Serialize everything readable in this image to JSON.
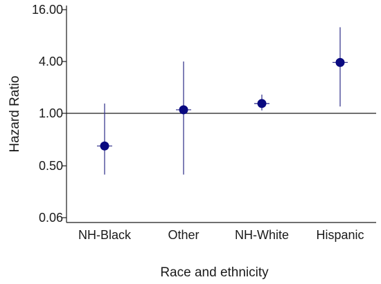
{
  "chart_data": {
    "type": "scatter",
    "subtype": "forest-plot",
    "title": "",
    "xlabel": "Race and ethnicity",
    "ylabel": "Hazard Ratio",
    "y_scale": "log",
    "y_ticks": [
      {
        "value": 0.06,
        "label": "0.06"
      },
      {
        "value": 0.5,
        "label": "0.50"
      },
      {
        "value": 1,
        "label": "1.00"
      },
      {
        "value": 4,
        "label": "4.00"
      },
      {
        "value": 16,
        "label": "16.00"
      }
    ],
    "ylim": [
      0.25,
      16
    ],
    "reference_line": 1,
    "categories": [
      "NH-Black",
      "Other",
      "NH-White",
      "Hispanic"
    ],
    "points": [
      {
        "category": "NH-Black",
        "estimate": 0.65,
        "lower": 0.35,
        "upper": 1.3
      },
      {
        "category": "Other",
        "estimate": 1.1,
        "lower": 0.35,
        "upper": 4.0
      },
      {
        "category": "NH-White",
        "estimate": 1.3,
        "lower": 1.08,
        "upper": 1.65
      },
      {
        "category": "Hispanic",
        "estimate": 3.9,
        "lower": 1.2,
        "upper": 10.0
      }
    ],
    "colors": {
      "point": "#0a0a80",
      "ci": "#3b3b90",
      "axis": "#1a1a1a"
    },
    "grid": false,
    "legend": "none"
  }
}
